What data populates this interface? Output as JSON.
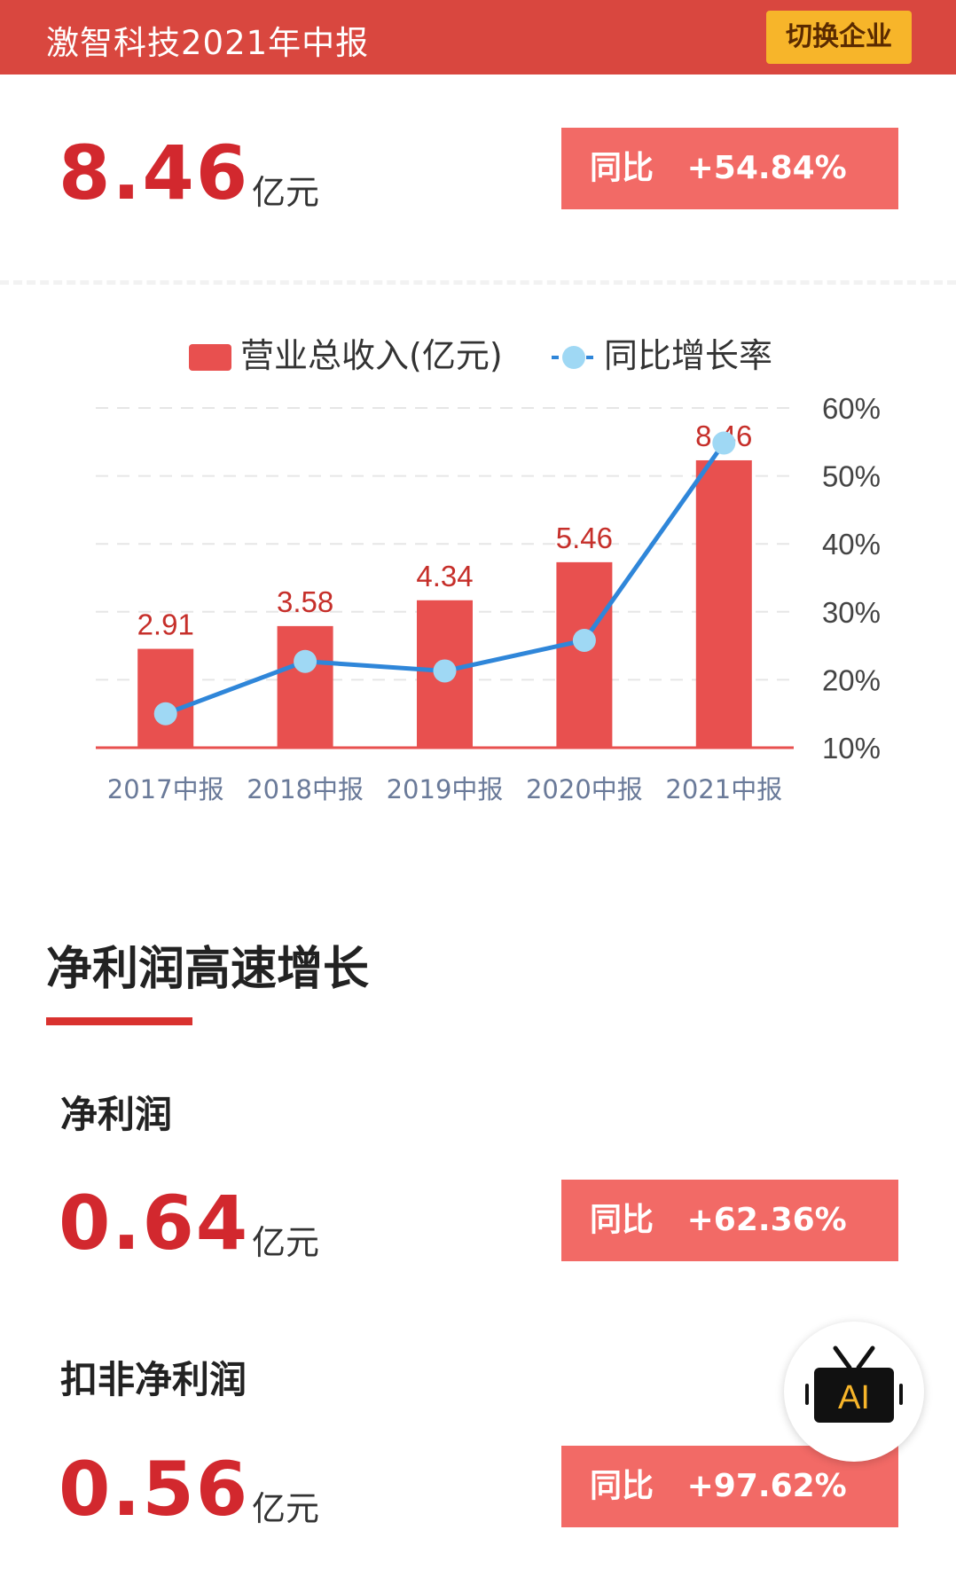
{
  "header": {
    "title": "激智科技2021年中报",
    "switch_label": "切换企业"
  },
  "revenue": {
    "value": "8.46",
    "unit": "亿元",
    "yoy_label": "同比",
    "yoy_value": "+54.84%"
  },
  "chart_data": {
    "type": "bar",
    "categories": [
      "2017中报",
      "2018中报",
      "2019中报",
      "2020中报",
      "2021中报"
    ],
    "series": [
      {
        "name": "营业总收入(亿元)",
        "type": "bar",
        "axis": "left",
        "color": "#e8504f",
        "values": [
          2.91,
          3.58,
          4.34,
          5.46,
          8.46
        ]
      },
      {
        "name": "同比增长率",
        "type": "line",
        "axis": "right",
        "color": "#2f86d9",
        "marker_color": "#9fd8f4",
        "values": [
          15.0,
          22.7,
          21.3,
          25.8,
          54.84
        ]
      }
    ],
    "data_labels": [
      "2.91",
      "3.58",
      "4.34",
      "5.46",
      "8.46"
    ],
    "y_left_range": [
      0,
      10
    ],
    "y_right_range": [
      10,
      60
    ],
    "y_right_ticks": [
      "60%",
      "50%",
      "40%",
      "30%",
      "20%",
      "10%"
    ],
    "grid": true,
    "legend_position": "top-center",
    "label_color": "#c62f2a",
    "tick_color": "#6a7a99"
  },
  "net_profit_section": {
    "title": "净利润高速增长",
    "net_profit": {
      "label": "净利润",
      "value": "0.64",
      "unit": "亿元",
      "yoy_label": "同比",
      "yoy_value": "+62.36%"
    },
    "deducted_net_profit": {
      "label": "扣非净利润",
      "value": "0.56",
      "unit": "亿元",
      "yoy_label": "同比",
      "yoy_value": "+97.62%"
    }
  },
  "ai_button": {
    "icon": "tv-icon",
    "text": "AI"
  },
  "colors": {
    "header_bg": "#d9473f",
    "accent_red": "#d2282e",
    "badge_bg": "#f26a66",
    "switch_bg": "#f7b52a"
  }
}
